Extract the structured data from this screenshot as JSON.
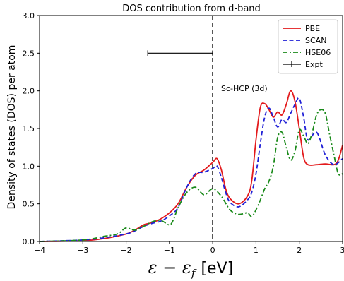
{
  "chart_data": {
    "type": "line",
    "title": "DOS contribution from d-band",
    "ylabel": "Density of states (DOS) per atom",
    "xlabel_math": "ε − ε",
    "xlabel_sub": "f",
    "xlabel_unit": "[eV]",
    "xlim": [
      -4,
      3
    ],
    "ylim": [
      0,
      3
    ],
    "xticks": [
      "−4",
      "−3",
      "−2",
      "−1",
      "0",
      "1",
      "2",
      "3"
    ],
    "xtick_values": [
      -4,
      -3,
      -2,
      -1,
      0,
      1,
      2,
      3
    ],
    "yticks": [
      "0.0",
      "0.5",
      "1.0",
      "1.5",
      "2.0",
      "2.5",
      "3.0"
    ],
    "ytick_values": [
      0,
      0.5,
      1.0,
      1.5,
      2.0,
      2.5,
      3.0
    ],
    "annotation": "Sc-HCP (3d)",
    "vline_x": 0,
    "legend_position": "top-right",
    "series": [
      {
        "name": "PBE",
        "color": "#e31a1c",
        "style": "solid",
        "x": [
          -4,
          -3,
          -2.5,
          -2,
          -1.8,
          -1.6,
          -1.4,
          -1.2,
          -1.0,
          -0.8,
          -0.6,
          -0.4,
          -0.2,
          0.0,
          0.1,
          0.2,
          0.3,
          0.4,
          0.6,
          0.8,
          0.9,
          1.0,
          1.1,
          1.2,
          1.3,
          1.4,
          1.5,
          1.6,
          1.7,
          1.8,
          1.9,
          2.0,
          2.1,
          2.2,
          2.4,
          2.6,
          2.8,
          2.9,
          3.0
        ],
        "y": [
          0.0,
          0.01,
          0.04,
          0.1,
          0.15,
          0.22,
          0.25,
          0.3,
          0.38,
          0.5,
          0.72,
          0.88,
          0.95,
          1.05,
          1.1,
          0.95,
          0.7,
          0.57,
          0.5,
          0.6,
          0.8,
          1.35,
          1.78,
          1.83,
          1.75,
          1.65,
          1.72,
          1.68,
          1.82,
          2.0,
          1.86,
          1.5,
          1.12,
          1.02,
          1.02,
          1.03,
          1.02,
          1.08,
          1.28
        ]
      },
      {
        "name": "SCAN",
        "color": "#1f1fd6",
        "style": "dashed",
        "x": [
          -4,
          -3,
          -2.5,
          -2,
          -1.8,
          -1.6,
          -1.4,
          -1.2,
          -1.0,
          -0.8,
          -0.6,
          -0.4,
          -0.2,
          0.0,
          0.1,
          0.2,
          0.3,
          0.4,
          0.6,
          0.8,
          0.9,
          1.0,
          1.1,
          1.2,
          1.3,
          1.4,
          1.5,
          1.6,
          1.7,
          1.8,
          1.9,
          2.0,
          2.1,
          2.2,
          2.4,
          2.6,
          2.8,
          3.0
        ],
        "y": [
          0.0,
          0.02,
          0.05,
          0.1,
          0.14,
          0.2,
          0.24,
          0.27,
          0.34,
          0.45,
          0.72,
          0.9,
          0.92,
          0.97,
          1.0,
          0.85,
          0.65,
          0.52,
          0.46,
          0.55,
          0.65,
          0.9,
          1.3,
          1.65,
          1.77,
          1.65,
          1.52,
          1.62,
          1.58,
          1.7,
          1.82,
          1.9,
          1.65,
          1.35,
          1.45,
          1.15,
          1.02,
          1.1
        ]
      },
      {
        "name": "HSE06",
        "color": "#1a8a1a",
        "style": "dashdot",
        "x": [
          -4,
          -3,
          -2.5,
          -2.2,
          -2,
          -1.8,
          -1.6,
          -1.4,
          -1.2,
          -1.0,
          -0.9,
          -0.8,
          -0.6,
          -0.4,
          -0.2,
          0.0,
          0.2,
          0.4,
          0.6,
          0.8,
          0.9,
          1.0,
          1.1,
          1.2,
          1.3,
          1.4,
          1.5,
          1.6,
          1.7,
          1.8,
          1.9,
          2.0,
          2.1,
          2.2,
          2.3,
          2.4,
          2.5,
          2.6,
          2.7,
          2.8,
          2.9,
          3.0
        ],
        "y": [
          0.0,
          0.02,
          0.07,
          0.1,
          0.18,
          0.15,
          0.2,
          0.26,
          0.28,
          0.22,
          0.3,
          0.45,
          0.65,
          0.72,
          0.62,
          0.7,
          0.6,
          0.42,
          0.36,
          0.38,
          0.33,
          0.42,
          0.55,
          0.7,
          0.8,
          1.0,
          1.38,
          1.45,
          1.25,
          1.08,
          1.2,
          1.48,
          1.4,
          1.3,
          1.45,
          1.68,
          1.75,
          1.7,
          1.42,
          1.15,
          0.9,
          0.9
        ]
      }
    ],
    "expt": {
      "name": "Expt",
      "color": "#000000",
      "y": 2.5,
      "x_from": -1.5,
      "x_to": 0.0
    }
  }
}
